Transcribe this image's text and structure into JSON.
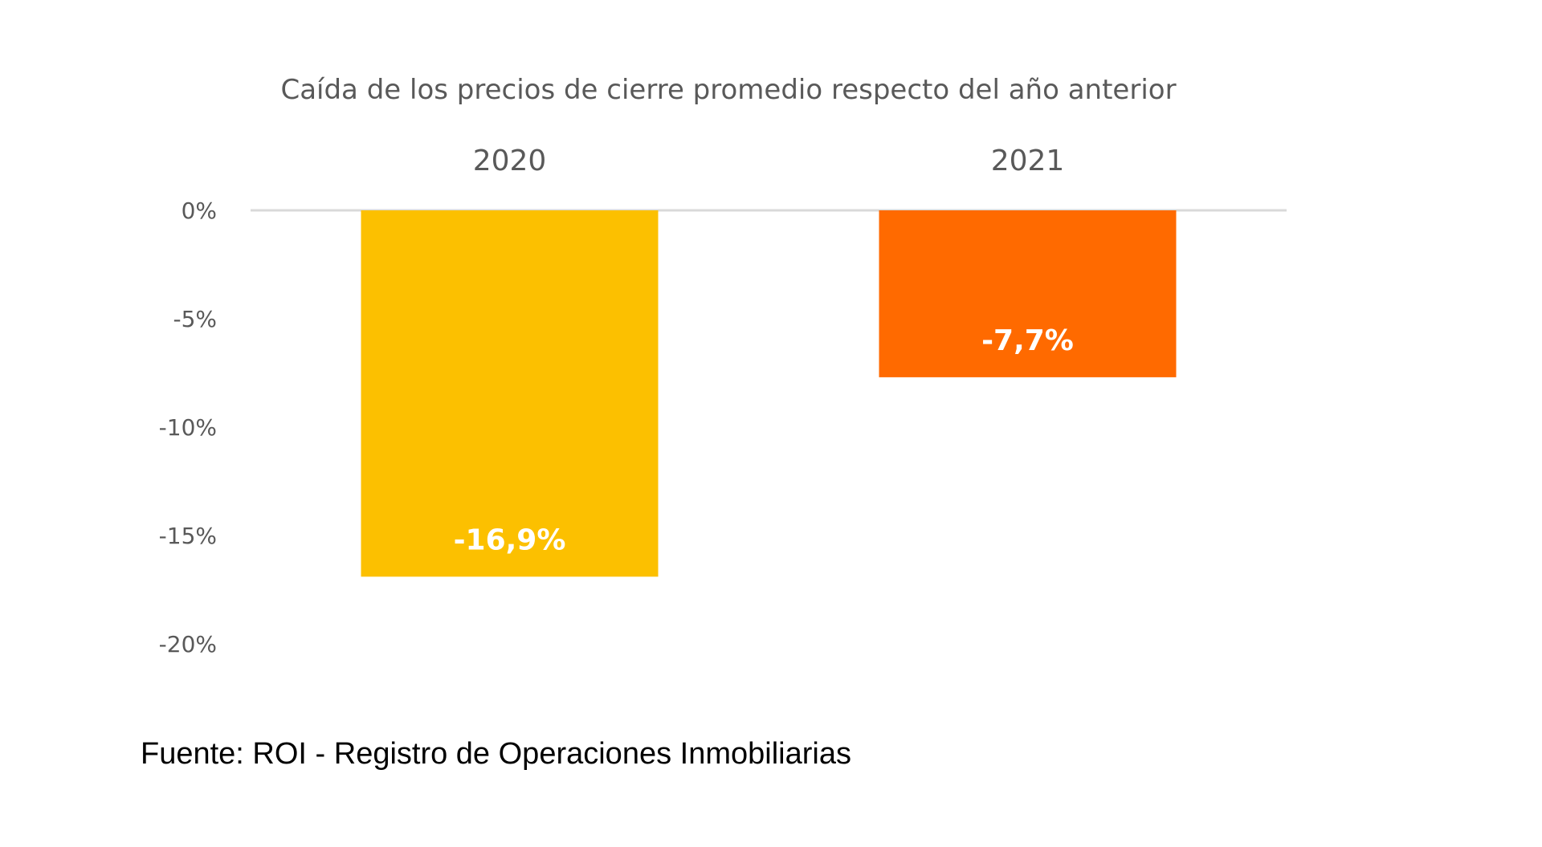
{
  "chart_data": {
    "type": "bar",
    "title": "Caída de los precios de cierre promedio respecto del año anterior",
    "categories": [
      "2020",
      "2021"
    ],
    "values": [
      -16.9,
      -7.7
    ],
    "value_labels": [
      "-16,9%",
      "-7,7%"
    ],
    "bar_colors": [
      "#FCC000",
      "#FF6A00"
    ],
    "ylim": [
      -20,
      0
    ],
    "yticks": [
      0,
      -5,
      -10,
      -15,
      -20
    ],
    "ytick_labels": [
      "0%",
      "-5%",
      "-10%",
      "-15%",
      "-20%"
    ],
    "xlabel": "",
    "ylabel": "",
    "category_axis_position": "top",
    "grid": false,
    "legend": false
  },
  "footer": {
    "source": "Fuente: ROI - Registro de Operaciones Inmobiliarias"
  }
}
